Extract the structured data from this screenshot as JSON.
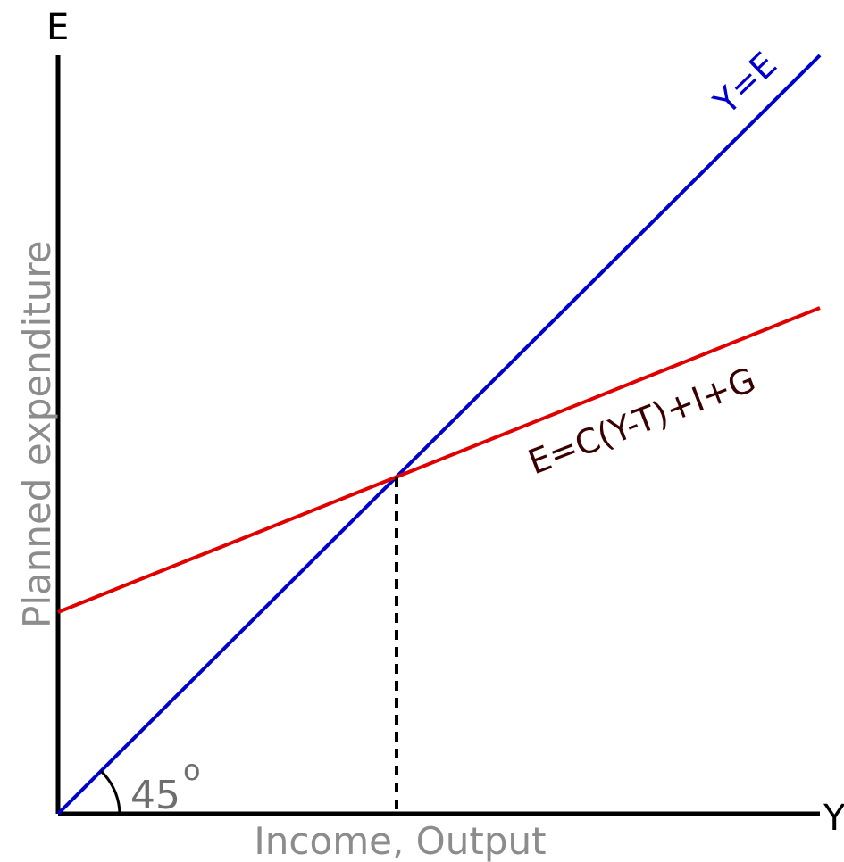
{
  "diagram": {
    "y_axis_letter": "E",
    "x_axis_letter": "Y",
    "y_axis_title": "Planned expenditure",
    "x_axis_title": "Income, Output",
    "line_45_label": "Y=E",
    "expenditure_label": "E=C(Y-T)+I+G",
    "angle_label": "45",
    "angle_superscript": "o",
    "colors": {
      "line_45": "#0000cc",
      "expenditure": "#e00000",
      "expenditure_label": "#3a0000",
      "axes": "#000000"
    }
  }
}
